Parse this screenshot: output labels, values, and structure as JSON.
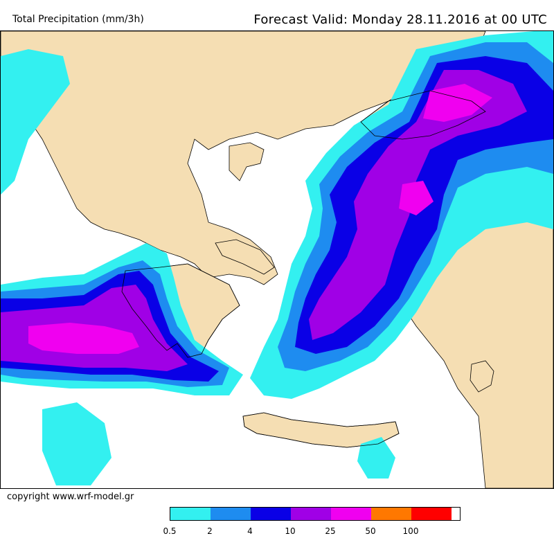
{
  "header": {
    "title": "Total Precipitation (mm/3h)",
    "forecast_valid": "Forecast Valid:  Monday 28.11.2016 at 00 UTC"
  },
  "footer": {
    "copyright": "copyright www.wrf-model.gr"
  },
  "legend": {
    "colors": [
      "#33f0f0",
      "#1e8cf0",
      "#0a00e6",
      "#a000e6",
      "#f000f0",
      "#ff7800",
      "#ff0000"
    ],
    "labels": [
      "0.5",
      "2",
      "4",
      "10",
      "25",
      "50",
      "100"
    ]
  },
  "map_colors": {
    "land": "#f5deb3",
    "sea": "#ffffff",
    "border": "#000000"
  }
}
